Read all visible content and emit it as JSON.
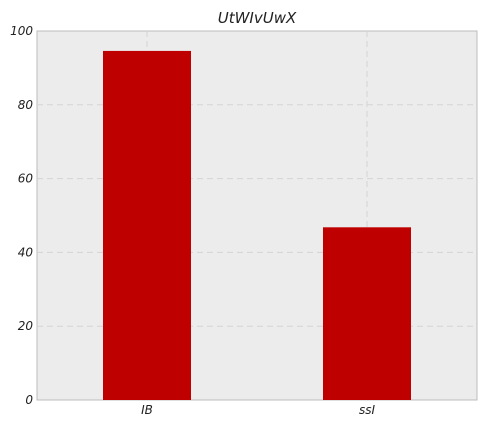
{
  "chart_data": {
    "type": "bar",
    "title": "UtWIvUwX",
    "xlabel": "",
    "ylabel": "",
    "categories": [
      "IB",
      "ssI"
    ],
    "values": [
      94.6,
      46.8
    ],
    "ylim": [
      0,
      100
    ],
    "yticks": [
      0,
      20,
      40,
      60,
      80,
      100
    ],
    "grid": true,
    "legend": "none",
    "bar_color": "#bf0000",
    "plot_background": "#ececec",
    "grid_color": "#d4d4d4",
    "axis_color": "#bcbcbc"
  }
}
